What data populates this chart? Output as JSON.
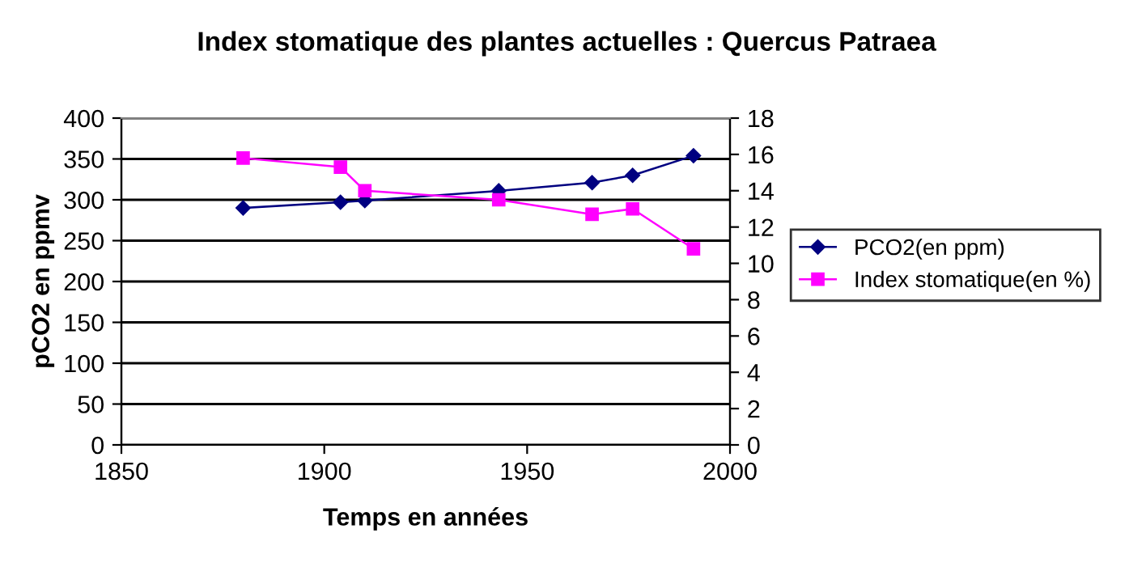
{
  "chart_data": {
    "type": "line",
    "title": "Index stomatique des plantes actuelles : Quercus Patraea",
    "xlabel": "Temps en années",
    "ylabel": "pCO2 en ppmv",
    "xlim": [
      1850,
      2000
    ],
    "xticks": [
      1850,
      1900,
      1950,
      2000
    ],
    "ylim": [
      0,
      400
    ],
    "yticks": [
      0,
      50,
      100,
      150,
      200,
      250,
      300,
      350,
      400
    ],
    "y2lim": [
      0,
      18
    ],
    "y2ticks": [
      0,
      2,
      4,
      6,
      8,
      10,
      12,
      14,
      16,
      18
    ],
    "grid": "y",
    "legend": "right",
    "line_style": "solid",
    "series": [
      {
        "name": "PCO2(en ppm)",
        "color": "#000080",
        "marker": "diamond",
        "x": [
          1880,
          1904,
          1910,
          1943,
          1966,
          1976,
          1991
        ],
        "values": [
          290,
          297,
          299,
          311,
          321,
          330,
          354
        ]
      },
      {
        "name": "Index stomatique(en %)",
        "color": "#ff00ff",
        "marker": "square",
        "axis": "y2",
        "x": [
          1880,
          1904,
          1910,
          1943,
          1966,
          1976,
          1991
        ],
        "values": [
          15.8,
          15.3,
          14.0,
          13.5,
          12.7,
          13.0,
          10.8
        ]
      }
    ]
  }
}
